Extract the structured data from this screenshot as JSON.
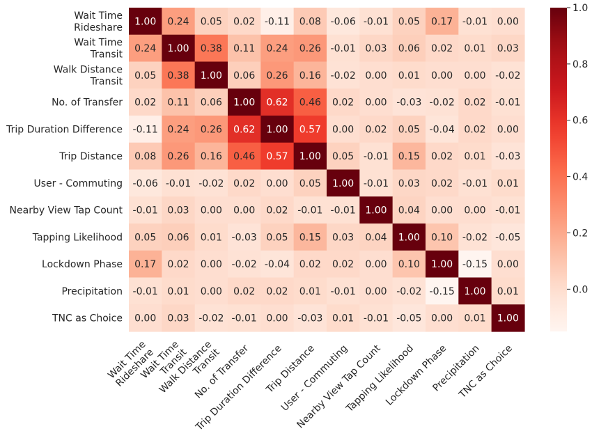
{
  "chart_data": {
    "type": "heatmap",
    "title": "",
    "xlabel": "",
    "ylabel": "",
    "row_labels": [
      [
        "Wait Time",
        "Rideshare"
      ],
      [
        "Wait Time",
        "Transit"
      ],
      [
        "Walk Distance",
        "Transit"
      ],
      [
        "No. of Transfer"
      ],
      [
        "Trip Duration Difference"
      ],
      [
        "Trip Distance"
      ],
      [
        "User - Commuting"
      ],
      [
        "Nearby View Tap Count"
      ],
      [
        "Tapping Likelihood"
      ],
      [
        "Lockdown Phase"
      ],
      [
        "Precipitation"
      ],
      [
        "TNC as Choice"
      ]
    ],
    "col_labels": [
      [
        "Wait Time",
        "Rideshare"
      ],
      [
        "Wait Time",
        "Transit"
      ],
      [
        "Walk Distance",
        "Transit"
      ],
      [
        "No. of Transfer"
      ],
      [
        "Trip Duration Difference"
      ],
      [
        "Trip Distance"
      ],
      [
        "User - Commuting"
      ],
      [
        "Nearby View Tap Count"
      ],
      [
        "Tapping Likelihood"
      ],
      [
        "Lockdown Phase"
      ],
      [
        "Precipitation"
      ],
      [
        "TNC as Choice"
      ]
    ],
    "values": [
      [
        1.0,
        0.24,
        0.05,
        0.02,
        -0.11,
        0.08,
        -0.06,
        -0.01,
        0.05,
        0.17,
        -0.01,
        0.0
      ],
      [
        0.24,
        1.0,
        0.38,
        0.11,
        0.24,
        0.26,
        -0.01,
        0.03,
        0.06,
        0.02,
        0.01,
        0.03
      ],
      [
        0.05,
        0.38,
        1.0,
        0.06,
        0.26,
        0.16,
        -0.02,
        -0.0,
        0.01,
        -0.0,
        0.0,
        -0.02
      ],
      [
        0.02,
        0.11,
        0.06,
        1.0,
        0.62,
        0.46,
        0.02,
        -0.0,
        -0.03,
        -0.02,
        0.02,
        -0.01
      ],
      [
        -0.11,
        0.24,
        0.26,
        0.62,
        1.0,
        0.57,
        0.0,
        0.02,
        0.05,
        -0.04,
        0.02,
        -0.0
      ],
      [
        0.08,
        0.26,
        0.16,
        0.46,
        0.57,
        1.0,
        0.05,
        -0.01,
        0.15,
        0.02,
        0.01,
        -0.03
      ],
      [
        -0.06,
        -0.01,
        -0.02,
        0.02,
        0.0,
        0.05,
        1.0,
        -0.01,
        0.03,
        0.02,
        -0.01,
        0.01
      ],
      [
        -0.01,
        0.03,
        -0.0,
        -0.0,
        0.02,
        -0.01,
        -0.01,
        1.0,
        0.04,
        0.0,
        -0.0,
        -0.01
      ],
      [
        0.05,
        0.06,
        0.01,
        -0.03,
        0.05,
        0.15,
        0.03,
        0.04,
        1.0,
        0.1,
        -0.02,
        -0.05
      ],
      [
        0.17,
        0.02,
        -0.0,
        -0.02,
        -0.04,
        0.02,
        0.02,
        0.0,
        0.1,
        1.0,
        -0.15,
        0.0
      ],
      [
        -0.01,
        0.01,
        0.0,
        0.02,
        0.02,
        0.01,
        -0.01,
        -0.0,
        -0.02,
        -0.15,
        1.0,
        0.01
      ],
      [
        0.0,
        0.03,
        -0.02,
        -0.01,
        -0.0,
        -0.03,
        0.01,
        -0.01,
        -0.05,
        0.0,
        0.01,
        1.0
      ]
    ],
    "value_format": "2 decimals",
    "colormap": "Reds",
    "colorbar": {
      "range": [
        -0.15,
        1.0
      ],
      "ticks": [
        1.0,
        0.8,
        0.6,
        0.4,
        0.2,
        0.0
      ],
      "tick_labels": [
        "1.0",
        "0.8",
        "0.6",
        "0.4",
        "0.2",
        "0.0"
      ]
    },
    "grid": false,
    "legend": "colorbar at right"
  }
}
